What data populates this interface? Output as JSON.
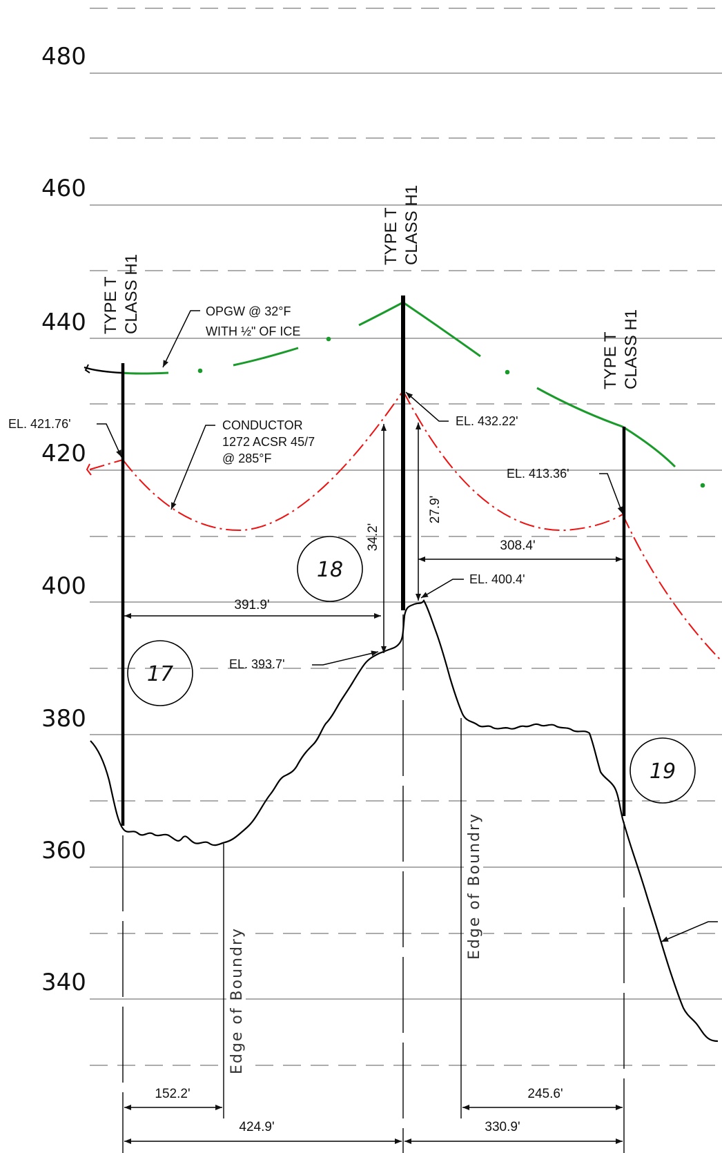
{
  "elevation_axis": [
    "480",
    "460",
    "440",
    "420",
    "400",
    "380",
    "360",
    "340"
  ],
  "structures": [
    {
      "line1": "TYPE T",
      "line2": "CLASS H1"
    },
    {
      "line1": "TYPE T",
      "line2": "CLASS H1"
    },
    {
      "line1": "TYPE T",
      "line2": "CLASS H1"
    }
  ],
  "stations": [
    "17",
    "18",
    "19"
  ],
  "callouts": {
    "opgw_line1": "OPGW @ 32°F",
    "opgw_line2_prefix": "WITH ",
    "opgw_line2_fraction": "½\"",
    "opgw_line2_suffix": " OF ICE",
    "conductor_line1": "CONDUCTOR",
    "conductor_line2": "1272 ACSR 45/7",
    "conductor_line3": "@ 285°F"
  },
  "elevations": {
    "el_17": "EL. 421.76'",
    "el_18_top": "EL. 432.22'",
    "el_19": "EL. 413.36'",
    "el_ground_18": "EL. 400.4'",
    "el_low": "EL. 393.7'"
  },
  "dimensions": {
    "span_17_18": "391.9'",
    "span_18_19": "308.4'",
    "clearance_left": "34.2'",
    "clearance_right": "27.9'",
    "boundary_left": "152.2'",
    "boundary_right": "245.6'",
    "bottom_left": "424.9'",
    "bottom_right": "330.9'"
  },
  "boundary_labels": [
    "Edge of Boundry",
    "Edge of Boundry"
  ],
  "colors": {
    "opgw": "#1a9a2a",
    "conductor": "#ee1111",
    "ground": "#000000",
    "grid": "#777777"
  }
}
